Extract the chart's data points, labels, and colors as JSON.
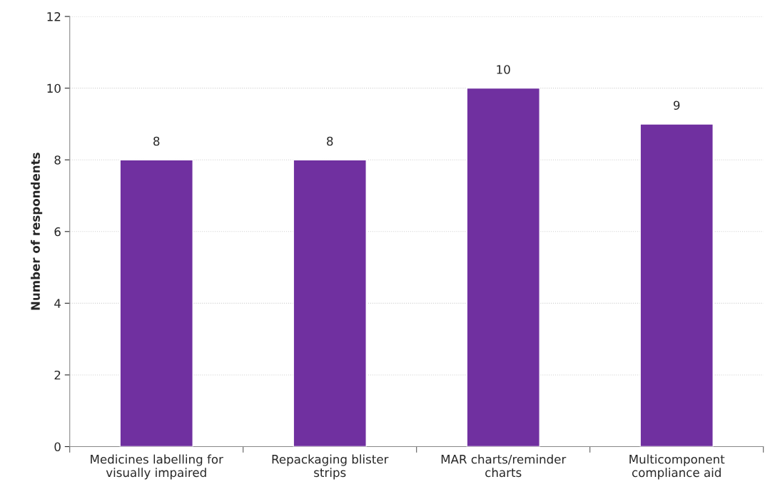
{
  "chart_data": {
    "type": "bar",
    "categories": [
      "Medicines labelling for\nvisually impaired",
      "Repackaging blister\nstrips",
      "MAR charts/reminder\ncharts",
      "Multicomponent\ncompliance aid"
    ],
    "values": [
      8,
      8,
      10,
      9
    ],
    "color": "#7030a0",
    "ylabel": "Number of respondents",
    "ylim": [
      0,
      12
    ],
    "yticks": [
      0,
      2,
      4,
      6,
      8,
      10,
      12
    ],
    "grid": "y",
    "data_labels": true
  }
}
